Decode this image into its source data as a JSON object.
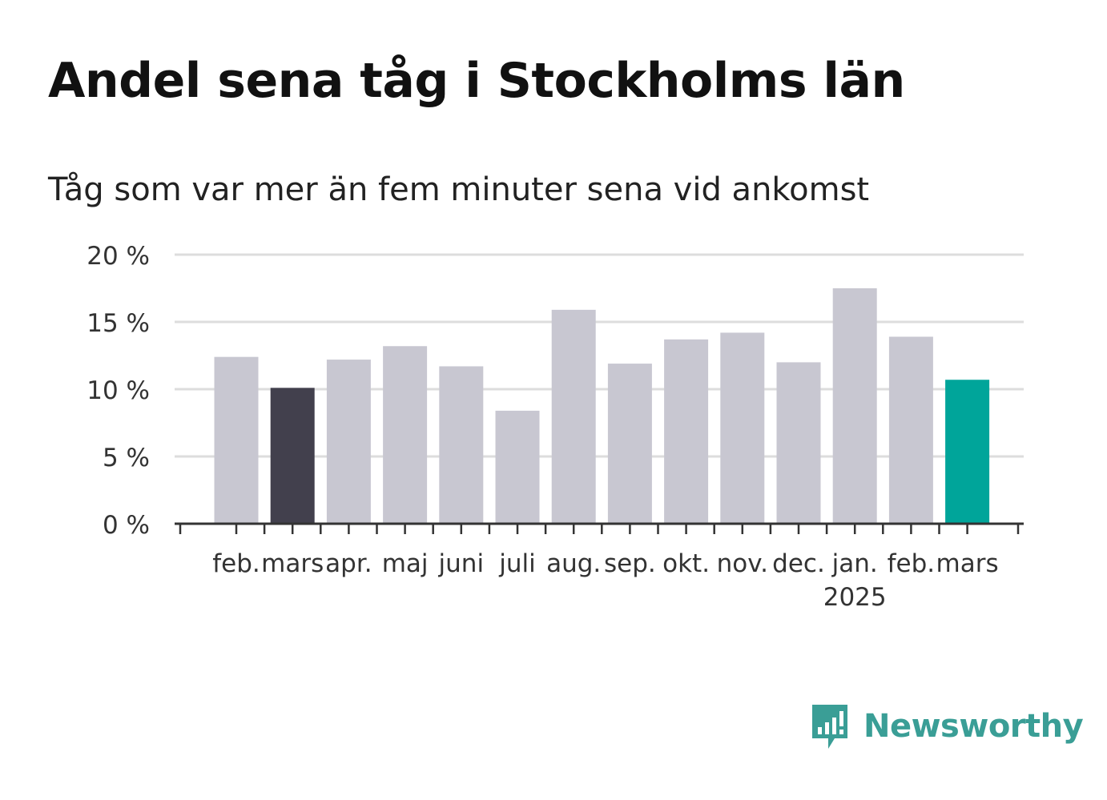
{
  "title": "Andel sena tåg i Stockholms län",
  "subtitle": "Tåg som var mer än fem minuter sena vid ankomst",
  "brand": {
    "name": "Newsworthy",
    "color": "#3a9e96",
    "icon": "bar-chart-speech-bubble-icon"
  },
  "chart_data": {
    "type": "bar",
    "categories": [
      "feb.",
      "mars",
      "apr.",
      "maj",
      "juni",
      "juli",
      "aug.",
      "sep.",
      "okt.",
      "nov.",
      "dec.",
      "jan.",
      "feb.",
      "mars"
    ],
    "year_label": "2025",
    "year_label_under_index": 11,
    "values": [
      12.4,
      10.1,
      12.2,
      13.2,
      11.7,
      8.4,
      15.9,
      11.9,
      13.7,
      14.2,
      12.0,
      17.5,
      13.9,
      10.7
    ],
    "ylim": [
      0,
      20
    ],
    "yticks": [
      0,
      5,
      10,
      15,
      20
    ],
    "ytick_labels": [
      "0 %",
      "5 %",
      "10 %",
      "15 %",
      "20 %"
    ],
    "grid": true,
    "colors": {
      "default": "#c8c7d1",
      "highlight_previous": "#42404d",
      "highlight_current": "#00a59a",
      "grid": "#dddddd",
      "axis": "#333333",
      "text": "#333333"
    },
    "highlight_indices": {
      "1": "highlight_previous",
      "13": "highlight_current"
    }
  }
}
